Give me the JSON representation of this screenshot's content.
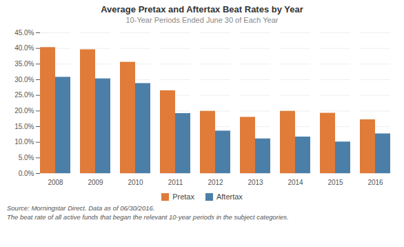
{
  "chart_data": {
    "type": "bar",
    "title": "Average Pretax and Aftertax Beat Rates by Year",
    "subtitle": "10-Year Periods Ended June 30 of Each Year",
    "categories": [
      "2008",
      "2009",
      "2010",
      "2011",
      "2012",
      "2013",
      "2014",
      "2015",
      "2016"
    ],
    "series": [
      {
        "name": "Pretax",
        "color": "#E07B39",
        "values": [
          0.403,
          0.396,
          0.356,
          0.265,
          0.199,
          0.18,
          0.199,
          0.193,
          0.172
        ]
      },
      {
        "name": "Aftertax",
        "color": "#4C7FA8",
        "values": [
          0.308,
          0.303,
          0.288,
          0.192,
          0.136,
          0.111,
          0.117,
          0.101,
          0.127
        ]
      }
    ],
    "ylim": [
      0,
      0.45
    ],
    "yticks": [
      {
        "value": 0.0,
        "label": "0.0%"
      },
      {
        "value": 0.05,
        "label": "5.0%"
      },
      {
        "value": 0.1,
        "label": "10.0%"
      },
      {
        "value": 0.15,
        "label": "15.0%"
      },
      {
        "value": 0.2,
        "label": "20.0%"
      },
      {
        "value": 0.25,
        "label": "25.0%"
      },
      {
        "value": 0.3,
        "label": "30.0%"
      },
      {
        "value": 0.35,
        "label": "35.0%"
      },
      {
        "value": 0.4,
        "label": "40.0%"
      },
      {
        "value": 0.45,
        "label": "45.0%"
      }
    ],
    "grid": true,
    "legend": "bottom",
    "footnotes": [
      "Source: Morningstar Direct. Data as of 06/30/2016.",
      "The beat rate of all active funds that began the relevant 10-year periods in the subject categories."
    ]
  }
}
